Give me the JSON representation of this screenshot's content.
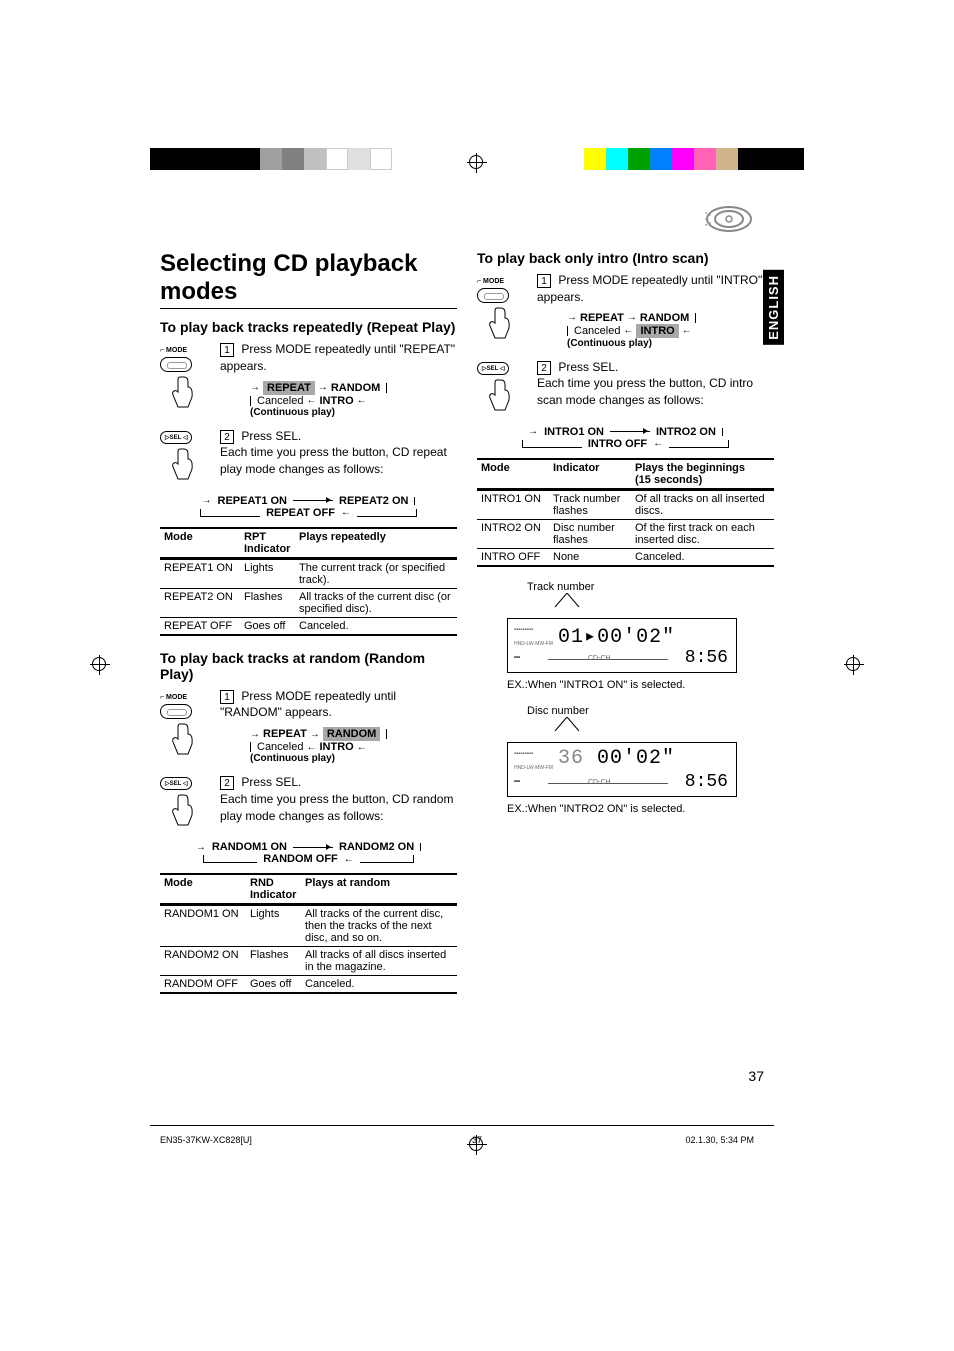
{
  "colorbars_left": [
    "#000000",
    "#000000",
    "#000000",
    "#000000",
    "#000000",
    "#a0a0a0",
    "#808080",
    "#c0c0c0",
    "#ffffff",
    "#e0e0e0",
    "#ffffff"
  ],
  "colorbars_right": [
    "#ffff00",
    "#00ffff",
    "#00a000",
    "#0080ff",
    "#ff00ff",
    "#ff64b4",
    "#d2b48c",
    "#000000",
    "#000000",
    "#000000"
  ],
  "english_tab": "ENGLISH",
  "title": "Selecting CD playback modes",
  "repeat": {
    "heading": "To play back tracks repeatedly (Repeat Play)",
    "step1": "Press MODE repeatedly until \"REPEAT\" appears.",
    "step2_a": "Press SEL.",
    "step2_b": "Each time you press the button, CD repeat play mode changes as follows:",
    "cycle": [
      "REPEAT",
      "RANDOM",
      "INTRO",
      "Canceled"
    ],
    "cycle_note": "(Continuous play)",
    "active_idx": 0,
    "subcycle": [
      "REPEAT1 ON",
      "REPEAT2 ON",
      "REPEAT OFF"
    ],
    "table": {
      "cols": [
        "Mode",
        "RPT Indicator",
        "Plays repeatedly"
      ],
      "rows": [
        [
          "REPEAT1 ON",
          "Lights",
          "The current track (or specified track)."
        ],
        [
          "REPEAT2 ON",
          "Flashes",
          "All tracks of the current disc (or specified disc)."
        ],
        [
          "REPEAT OFF",
          "Goes off",
          "Canceled."
        ]
      ]
    }
  },
  "random": {
    "heading": "To play back tracks at random (Random Play)",
    "step1": "Press MODE repeatedly until \"RANDOM\" appears.",
    "step2_a": "Press SEL.",
    "step2_b": "Each time you press the button, CD random play mode changes as follows:",
    "cycle_active_idx": 1,
    "subcycle": [
      "RANDOM1 ON",
      "RANDOM2 ON",
      "RANDOM OFF"
    ],
    "table": {
      "cols": [
        "Mode",
        "RND Indicator",
        "Plays at random"
      ],
      "rows": [
        [
          "RANDOM1 ON",
          "Lights",
          "All tracks of the current disc, then the tracks of the next disc, and so on."
        ],
        [
          "RANDOM2 ON",
          "Flashes",
          "All tracks of all discs inserted in the magazine."
        ],
        [
          "RANDOM OFF",
          "Goes off",
          "Canceled."
        ]
      ]
    }
  },
  "intro": {
    "heading": "To play back only intro (Intro scan)",
    "step1": "Press MODE repeatedly until \"INTRO\" appears.",
    "step2_a": "Press SEL.",
    "step2_b": "Each time you press the button, CD intro scan mode changes as follows:",
    "cycle_active_idx": 2,
    "subcycle": [
      "INTRO1 ON",
      "INTRO2 ON",
      "INTRO OFF"
    ],
    "table": {
      "cols": [
        "Mode",
        "Indicator",
        "Plays the beginnings (15 seconds)"
      ],
      "rows": [
        [
          "INTRO1 ON",
          "Track number flashes",
          "Of all tracks on all inserted discs."
        ],
        [
          "INTRO2 ON",
          "Disc number flashes",
          "Of the first track on each inserted disc."
        ],
        [
          "INTRO OFF",
          "None",
          "Canceled."
        ]
      ]
    }
  },
  "display1": {
    "callout": "Track number",
    "main": "01",
    "time": "00'02\"",
    "clock": "8:56",
    "sub": "CD-CH",
    "ex": "EX.:When \"INTRO1 ON\" is selected."
  },
  "display2": {
    "callout": "Disc number",
    "main": "36",
    "time": "00'02\"",
    "clock": "8:56",
    "sub": "CD-CH",
    "ex": "EX.:When \"INTRO2 ON\" is selected."
  },
  "mode_label": "MODE",
  "sel_label": "SEL",
  "page_number": "37",
  "footer": {
    "left": "EN35-37KW-XC828[U]",
    "mid": "37",
    "right": "02.1.30, 5:34 PM"
  }
}
